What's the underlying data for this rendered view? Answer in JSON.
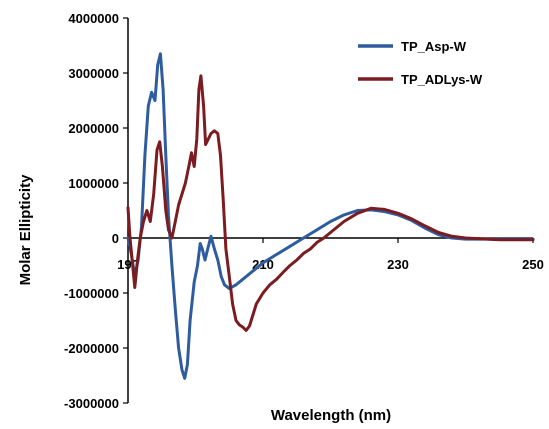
{
  "chart_data": {
    "type": "line",
    "title": "",
    "xlabel": "Wavelength (nm)",
    "ylabel": "Molar Ellipticity",
    "xlim": [
      190,
      250
    ],
    "ylim": [
      -3000000,
      4000000
    ],
    "x_ticks": [
      "190",
      "210",
      "230",
      "250"
    ],
    "y_ticks": [
      "4000000",
      "3000000",
      "2000000",
      "1000000",
      "0",
      "-1000000",
      "-2000000",
      "-3000000"
    ],
    "legend": "top-right",
    "grid": false,
    "series": [
      {
        "name": "TP_Asp-W",
        "color": "#2E5C9E",
        "points": [
          [
            190.0,
            0
          ],
          [
            190.5,
            -300000
          ],
          [
            191.0,
            -700000
          ],
          [
            191.5,
            -400000
          ],
          [
            192.0,
            200000
          ],
          [
            192.5,
            1500000
          ],
          [
            193.0,
            2400000
          ],
          [
            193.5,
            2650000
          ],
          [
            194.0,
            2500000
          ],
          [
            194.4,
            3150000
          ],
          [
            194.8,
            3350000
          ],
          [
            195.2,
            2700000
          ],
          [
            195.6,
            1500000
          ],
          [
            196.0,
            400000
          ],
          [
            196.5,
            -500000
          ],
          [
            197.0,
            -1300000
          ],
          [
            197.5,
            -2000000
          ],
          [
            198.0,
            -2400000
          ],
          [
            198.4,
            -2550000
          ],
          [
            198.8,
            -2300000
          ],
          [
            199.2,
            -1500000
          ],
          [
            199.8,
            -800000
          ],
          [
            200.3,
            -500000
          ],
          [
            200.7,
            -100000
          ],
          [
            201.0,
            -200000
          ],
          [
            201.4,
            -400000
          ],
          [
            201.8,
            -200000
          ],
          [
            202.3,
            30000
          ],
          [
            202.8,
            -200000
          ],
          [
            203.3,
            -400000
          ],
          [
            203.8,
            -700000
          ],
          [
            204.3,
            -850000
          ],
          [
            205.0,
            -920000
          ],
          [
            206.0,
            -850000
          ],
          [
            207.0,
            -750000
          ],
          [
            208.0,
            -650000
          ],
          [
            209.0,
            -550000
          ],
          [
            210.0,
            -450000
          ],
          [
            212.0,
            -300000
          ],
          [
            214.0,
            -150000
          ],
          [
            216.0,
            0
          ],
          [
            218.0,
            150000
          ],
          [
            220.0,
            300000
          ],
          [
            222.0,
            420000
          ],
          [
            224.0,
            500000
          ],
          [
            226.0,
            510000
          ],
          [
            228.0,
            480000
          ],
          [
            230.0,
            420000
          ],
          [
            232.0,
            320000
          ],
          [
            234.0,
            180000
          ],
          [
            236.0,
            60000
          ],
          [
            238.0,
            0
          ],
          [
            240.0,
            -20000
          ],
          [
            245.0,
            -20000
          ],
          [
            250.0,
            -20000
          ]
        ]
      },
      {
        "name": "TP_ADLys-W",
        "color": "#7B1C20",
        "points": [
          [
            190.0,
            550000
          ],
          [
            190.3,
            0
          ],
          [
            190.7,
            -500000
          ],
          [
            191.0,
            -900000
          ],
          [
            191.4,
            -400000
          ],
          [
            191.8,
            0
          ],
          [
            192.3,
            300000
          ],
          [
            192.8,
            500000
          ],
          [
            193.3,
            300000
          ],
          [
            193.8,
            800000
          ],
          [
            194.3,
            1600000
          ],
          [
            194.7,
            1750000
          ],
          [
            195.1,
            1300000
          ],
          [
            195.6,
            500000
          ],
          [
            196.0,
            150000
          ],
          [
            196.5,
            0
          ],
          [
            197.0,
            300000
          ],
          [
            197.5,
            600000
          ],
          [
            198.0,
            800000
          ],
          [
            198.5,
            1000000
          ],
          [
            199.0,
            1300000
          ],
          [
            199.4,
            1550000
          ],
          [
            199.8,
            1300000
          ],
          [
            200.2,
            1800000
          ],
          [
            200.5,
            2700000
          ],
          [
            200.8,
            2950000
          ],
          [
            201.2,
            2400000
          ],
          [
            201.5,
            1700000
          ],
          [
            201.9,
            1800000
          ],
          [
            202.3,
            1900000
          ],
          [
            202.8,
            1950000
          ],
          [
            203.3,
            1900000
          ],
          [
            203.7,
            1500000
          ],
          [
            204.1,
            700000
          ],
          [
            204.5,
            -200000
          ],
          [
            205.0,
            -700000
          ],
          [
            205.5,
            -1200000
          ],
          [
            206.0,
            -1500000
          ],
          [
            206.5,
            -1580000
          ],
          [
            207.0,
            -1620000
          ],
          [
            207.5,
            -1680000
          ],
          [
            208.0,
            -1600000
          ],
          [
            208.5,
            -1400000
          ],
          [
            209.0,
            -1200000
          ],
          [
            210.0,
            -1000000
          ],
          [
            211.0,
            -850000
          ],
          [
            212.0,
            -750000
          ],
          [
            213.0,
            -620000
          ],
          [
            214.0,
            -500000
          ],
          [
            215.0,
            -400000
          ],
          [
            216.0,
            -280000
          ],
          [
            217.0,
            -200000
          ],
          [
            218.0,
            -80000
          ],
          [
            219.0,
            0
          ],
          [
            220.0,
            100000
          ],
          [
            222.0,
            300000
          ],
          [
            224.0,
            450000
          ],
          [
            226.0,
            540000
          ],
          [
            228.0,
            520000
          ],
          [
            230.0,
            450000
          ],
          [
            232.0,
            350000
          ],
          [
            234.0,
            220000
          ],
          [
            236.0,
            100000
          ],
          [
            238.0,
            30000
          ],
          [
            240.0,
            0
          ],
          [
            245.0,
            -30000
          ],
          [
            250.0,
            -30000
          ]
        ]
      }
    ]
  }
}
